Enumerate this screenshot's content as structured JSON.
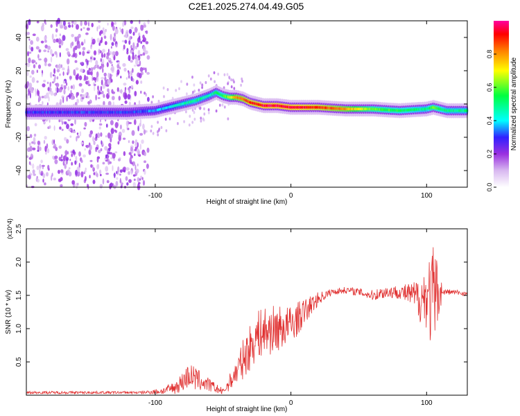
{
  "title": "C2E1.2025.274.04.49.G05",
  "chart_data": [
    {
      "type": "heatmap",
      "xlabel": "Height of straight line (km)",
      "ylabel": "Frequency (Hz)",
      "xlim": [
        -195,
        130
      ],
      "ylim": [
        -50,
        50
      ],
      "xticks": [
        -100,
        0,
        100
      ],
      "xtick_labels": [
        "-100",
        "0",
        "100"
      ],
      "yticks": [
        -40,
        -20,
        0,
        20,
        40
      ],
      "ytick_labels": [
        "-40",
        "-20",
        "0",
        "20",
        "40"
      ],
      "colorbar": {
        "label": "Normalized spectral amplitude",
        "range": [
          0,
          1
        ],
        "ticks": [
          0.0,
          0.2,
          0.4,
          0.6,
          0.8
        ],
        "tick_labels": [
          "0.0",
          "0.2",
          "0.4",
          "0.6",
          "0.8"
        ],
        "stops": [
          [
            0.0,
            "#ffffff"
          ],
          [
            0.1,
            "#d8b8f0"
          ],
          [
            0.2,
            "#9a30e0"
          ],
          [
            0.3,
            "#3020ff"
          ],
          [
            0.4,
            "#00ffff"
          ],
          [
            0.55,
            "#00ff40"
          ],
          [
            0.7,
            "#ffff00"
          ],
          [
            0.82,
            "#ff8000"
          ],
          [
            0.92,
            "#ff0000"
          ],
          [
            1.0,
            "#ff00a0"
          ]
        ]
      },
      "ridge": {
        "x": [
          -195,
          -150,
          -120,
          -100,
          -90,
          -80,
          -70,
          -60,
          -55,
          -50,
          -45,
          -40,
          -35,
          -30,
          -25,
          -20,
          -10,
          0,
          20,
          40,
          60,
          80,
          100,
          105,
          115,
          130
        ],
        "freq": [
          -5,
          -5,
          -5,
          -4,
          -2,
          0,
          2,
          5,
          7,
          5,
          4,
          4,
          3,
          1,
          0,
          -1,
          -1,
          -2,
          -2,
          -3,
          -3,
          -4,
          -3,
          -2,
          -4,
          -4
        ],
        "amplitude": [
          0.3,
          0.3,
          0.3,
          0.35,
          0.4,
          0.45,
          0.5,
          0.45,
          0.5,
          0.55,
          0.65,
          0.8,
          0.85,
          0.9,
          0.9,
          0.95,
          0.95,
          0.95,
          0.9,
          0.8,
          0.6,
          0.55,
          0.5,
          0.6,
          0.5,
          0.5
        ]
      },
      "noise_region_x": [
        -195,
        -105
      ]
    },
    {
      "type": "line",
      "xlabel": "Height of straight line (km)",
      "ylabel": "SNR (10 * v/v)",
      "y_multiplier": "(x10^4)",
      "xlim": [
        -195,
        130
      ],
      "ylim": [
        0,
        2.5
      ],
      "xticks": [
        -100,
        0,
        100
      ],
      "xtick_labels": [
        "-100",
        "0",
        "100"
      ],
      "yticks": [
        0.5,
        1.0,
        1.5,
        2.0,
        2.5
      ],
      "ytick_labels": [
        "0.5",
        "1.0",
        "1.5",
        "2.0",
        "2.5"
      ],
      "color": "#e03030",
      "envelope": {
        "x": [
          -195,
          -110,
          -95,
          -85,
          -80,
          -75,
          -70,
          -60,
          -50,
          -40,
          -35,
          -30,
          -25,
          -20,
          -10,
          0,
          5,
          10,
          20,
          30,
          40,
          50,
          60,
          70,
          80,
          90,
          95,
          100,
          105,
          108,
          112,
          120,
          130
        ],
        "mean": [
          0.04,
          0.04,
          0.06,
          0.12,
          0.2,
          0.3,
          0.24,
          0.15,
          0.05,
          0.35,
          0.55,
          0.72,
          0.9,
          0.95,
          1.0,
          1.05,
          1.15,
          1.25,
          1.45,
          1.55,
          1.58,
          1.55,
          1.5,
          1.55,
          1.55,
          1.5,
          1.45,
          1.5,
          1.4,
          1.55,
          1.55,
          1.55,
          1.52
        ],
        "noise": [
          0.02,
          0.02,
          0.05,
          0.1,
          0.15,
          0.2,
          0.18,
          0.1,
          0.05,
          0.2,
          0.3,
          0.35,
          0.35,
          0.4,
          0.35,
          0.3,
          0.25,
          0.2,
          0.1,
          0.05,
          0.05,
          0.06,
          0.08,
          0.1,
          0.1,
          0.2,
          0.35,
          0.5,
          0.9,
          0.5,
          0.05,
          0.04,
          0.04
        ]
      }
    }
  ]
}
